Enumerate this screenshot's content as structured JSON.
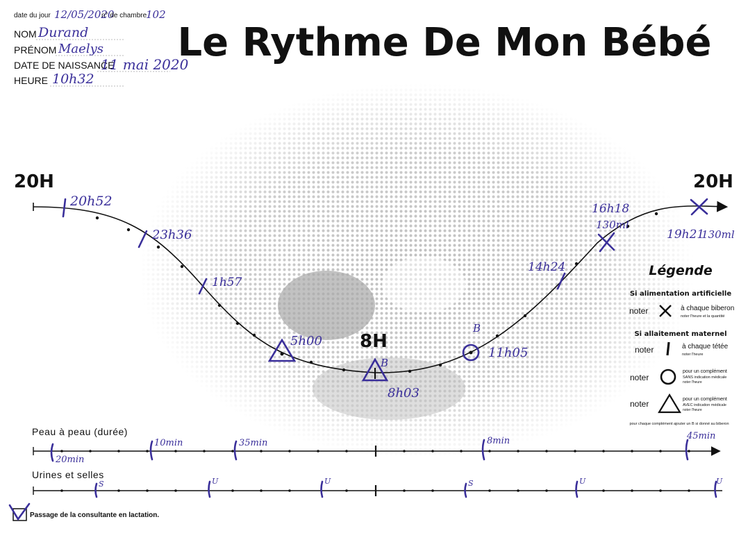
{
  "header": {
    "date_label": "date du jour",
    "date_value": "12/05/2020",
    "room_label": "n° de chambre",
    "room_value": "102",
    "nom_label": "NOM",
    "nom_value": "Durand",
    "prenom_label": "PRÉNOM",
    "prenom_value": "Maelys",
    "naissance_label": "DATE DE NAISSANCE",
    "naissance_value": "11 mai 2020",
    "heure_label": "HEURE",
    "heure_value": "10h32"
  },
  "title": "Le Rythme De Mon Bébé",
  "hour_labels": {
    "left": "20H",
    "middle": "8H",
    "right": "20H"
  },
  "curve_events": [
    {
      "label": "20h52",
      "marker": "breastfeed"
    },
    {
      "label": "23h36",
      "marker": "breastfeed"
    },
    {
      "label": "1h57",
      "marker": "breastfeed"
    },
    {
      "label": "5h00",
      "marker": "triangle"
    },
    {
      "label": "8h03",
      "marker": "triangle",
      "note": "B"
    },
    {
      "label": "11h05",
      "marker": "circle",
      "note": "B"
    },
    {
      "label": "14h24",
      "marker": "breastfeed"
    },
    {
      "label": "16h18",
      "marker": "bottle",
      "note": "130ml"
    },
    {
      "label": "19h21",
      "marker": "bottle",
      "note": "130ml"
    }
  ],
  "legend": {
    "title": "Légende",
    "artificial_title": "Si alimentation artificielle",
    "artificial_noter": "noter",
    "artificial_desc": "à chaque biberon",
    "artificial_sub": "noter l'heure et la quantité",
    "breast_title": "Si allaitement maternel",
    "breast_noter": "noter",
    "breast_desc": "à chaque tétée",
    "breast_sub": "noter l'heure",
    "circle_noter": "noter",
    "circle_desc": "pour un complément",
    "circle_desc2": "SANS indication médicale",
    "circle_sub": "noter l'heure",
    "triangle_noter": "noter",
    "triangle_desc": "pour un complément",
    "triangle_desc2": "AVEC indication médicale",
    "triangle_sub": "noter l'heure",
    "footnote": "pour chaque complément ajouter un B si donné au biberon"
  },
  "peau": {
    "label": "Peau à peau (durée)",
    "entries": [
      "20min",
      "10min",
      "35min",
      "8min",
      "45min"
    ]
  },
  "urines": {
    "label": "Urines et selles",
    "entries": [
      "S",
      "U",
      "U",
      "S",
      "U",
      "U"
    ]
  },
  "footer": {
    "label": "Passage de la consultante en lactation."
  },
  "colors": {
    "ink": "#3a2f9a",
    "print": "#111111",
    "photo": "#9a9a9a"
  }
}
